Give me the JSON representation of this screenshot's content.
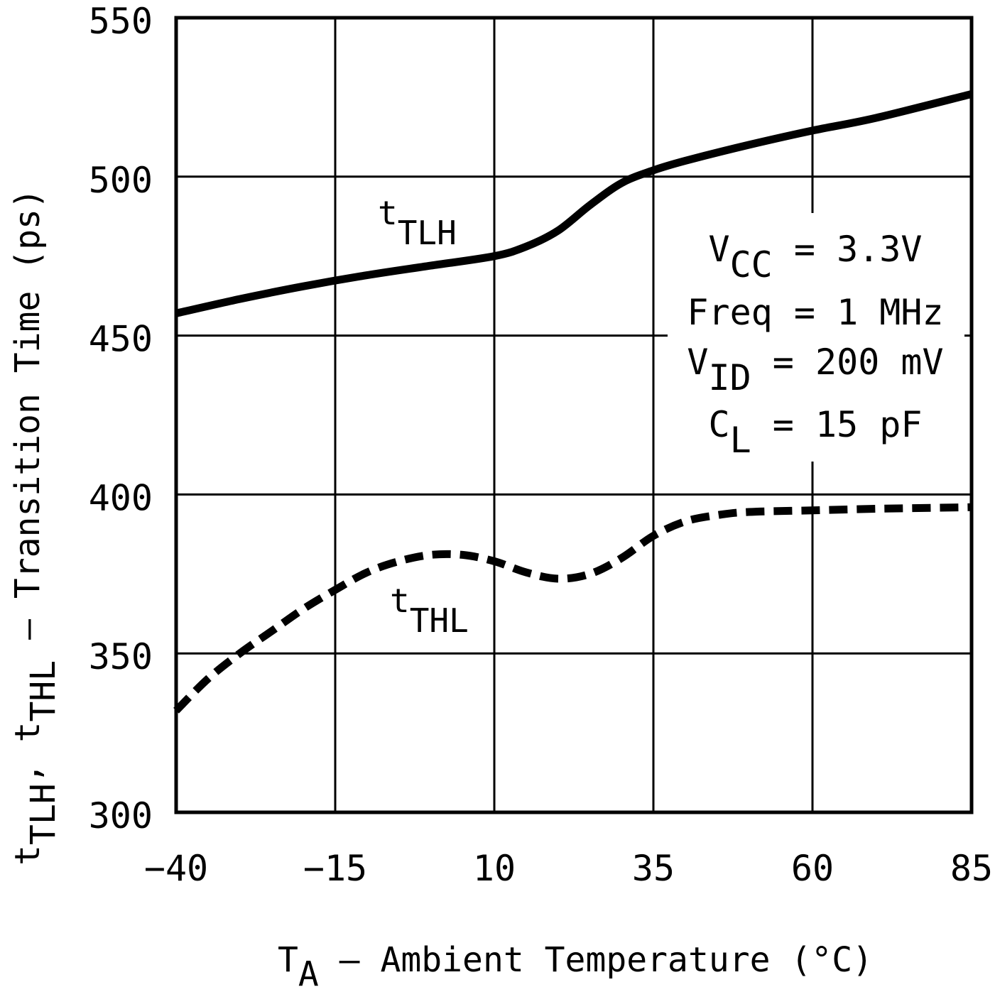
{
  "chart_data": {
    "type": "line",
    "title": "",
    "xlabel": {
      "main": "T",
      "sub": "A",
      "rest": " – Ambient Temperature (°C)"
    },
    "ylabel": {
      "parts": [
        {
          "text": "t",
          "sub": false
        },
        {
          "text": "TLH",
          "sub": true
        },
        {
          "text": ", t",
          "sub": false
        },
        {
          "text": "THL",
          "sub": true
        },
        {
          "text": " – Transition Time (ps)",
          "sub": false
        }
      ]
    },
    "xlim": [
      -40,
      85
    ],
    "ylim": [
      300,
      550
    ],
    "x_ticks": [
      -40,
      -15,
      10,
      35,
      60,
      85
    ],
    "x_tick_labels": [
      "−40",
      "−15",
      "10",
      "35",
      "60",
      "85"
    ],
    "y_ticks": [
      300,
      350,
      400,
      450,
      500,
      550
    ],
    "y_tick_labels": [
      "300",
      "350",
      "400",
      "450",
      "500",
      "550"
    ],
    "grid": true,
    "series": [
      {
        "name": "tTLH",
        "label_main": "t",
        "label_sub": "TLH",
        "style": "solid",
        "x": [
          -40,
          -30,
          -20,
          -10,
          0,
          10,
          15,
          20,
          25,
          30,
          35,
          40,
          50,
          60,
          70,
          85
        ],
        "y": [
          457,
          461.5,
          465.5,
          469,
          472,
          475,
          478,
          483,
          491,
          498,
          502,
          505,
          510,
          514.5,
          518.5,
          526
        ]
      },
      {
        "name": "tTHL",
        "label_main": "t",
        "label_sub": "THL",
        "style": "dashed",
        "x": [
          -40,
          -35,
          -30,
          -25,
          -20,
          -15,
          -10,
          -5,
          0,
          5,
          10,
          15,
          20,
          25,
          30,
          35,
          40,
          45,
          50,
          60,
          70,
          85
        ],
        "y": [
          332,
          342,
          350,
          357,
          364,
          370,
          375.5,
          379,
          381,
          381,
          379,
          375.5,
          373.5,
          375,
          380,
          387,
          391.5,
          393.5,
          394.5,
          395,
          395.5,
          396
        ]
      }
    ],
    "annotations": [
      {
        "lines": [
          {
            "main": "V",
            "sub": "CC",
            "rest": " = 3.3V"
          },
          {
            "main": "Freq = 1 MHz",
            "sub": "",
            "rest": ""
          },
          {
            "main": "V",
            "sub": "ID",
            "rest": " = 200 mV"
          },
          {
            "main": "C",
            "sub": "L",
            "rest": " = 15 pF"
          }
        ]
      }
    ],
    "colors": {
      "line": "#000000",
      "background": "#ffffff"
    }
  }
}
